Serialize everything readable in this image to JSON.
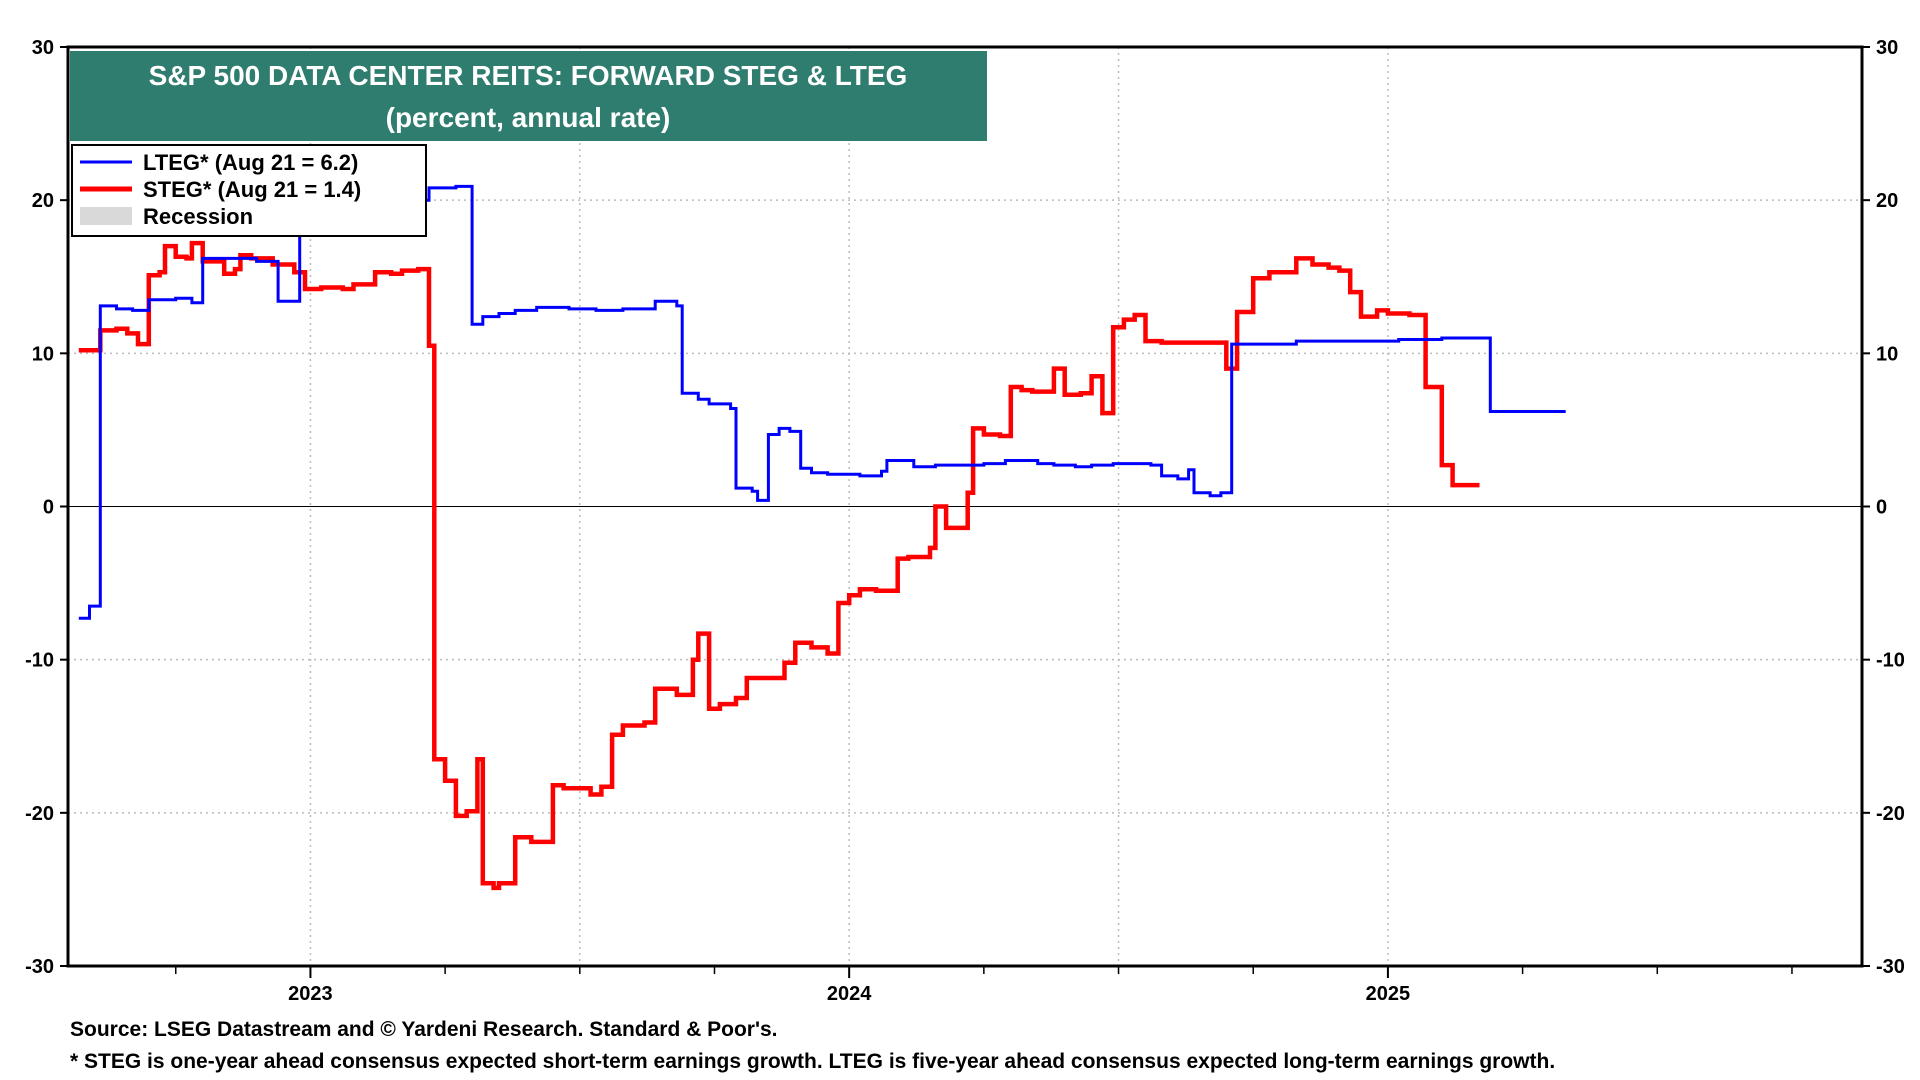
{
  "chart_data": {
    "type": "line",
    "title": "S&P 500 DATA CENTER REITS: FORWARD STEG & LTEG",
    "subtitle": "(percent, annual rate)",
    "ylim": [
      -30,
      30
    ],
    "yticks": [
      -30,
      -20,
      -10,
      0,
      10,
      20,
      30
    ],
    "xlim": [
      2022.55,
      2025.88
    ],
    "x_tick_labels": [
      {
        "label": "2023",
        "x": 2023.0
      },
      {
        "label": "2024",
        "x": 2024.0
      },
      {
        "label": "2025",
        "x": 2025.0
      }
    ],
    "x_minor_ticks": [
      2022.75,
      2023.25,
      2023.5,
      2023.75,
      2024.25,
      2024.5,
      2024.75,
      2025.25,
      2025.5,
      2025.75
    ],
    "x_grid": [
      2023.0,
      2023.5,
      2024.0,
      2024.5,
      2025.0
    ],
    "grid": true,
    "legend": {
      "placement": "top-left",
      "entries": [
        {
          "label": "LTEG* (Aug 21 = 6.2)",
          "color": "#0000ff"
        },
        {
          "label": "STEG* (Aug 21 = 1.4)",
          "color": "#ff0000"
        },
        {
          "label": "Recession",
          "color": "#d9d9d9"
        }
      ]
    },
    "series": [
      {
        "name": "LTEG* (Aug 21 = 6.2)",
        "color": "#0000ff",
        "step": true,
        "points": [
          [
            2022.57,
            -7.3
          ],
          [
            2022.59,
            -6.5
          ],
          [
            2022.61,
            13.1
          ],
          [
            2022.64,
            12.9
          ],
          [
            2022.67,
            12.8
          ],
          [
            2022.7,
            13.5
          ],
          [
            2022.75,
            13.6
          ],
          [
            2022.78,
            13.3
          ],
          [
            2022.8,
            16.2
          ],
          [
            2022.9,
            16.0
          ],
          [
            2022.94,
            13.4
          ],
          [
            2022.98,
            20.5
          ],
          [
            2023.05,
            20.5
          ],
          [
            2023.12,
            20.7
          ],
          [
            2023.15,
            20.0
          ],
          [
            2023.22,
            20.8
          ],
          [
            2023.27,
            20.9
          ],
          [
            2023.3,
            11.9
          ],
          [
            2023.32,
            12.4
          ],
          [
            2023.35,
            12.6
          ],
          [
            2023.38,
            12.8
          ],
          [
            2023.42,
            13.0
          ],
          [
            2023.48,
            12.9
          ],
          [
            2023.53,
            12.8
          ],
          [
            2023.58,
            12.9
          ],
          [
            2023.64,
            13.4
          ],
          [
            2023.68,
            13.1
          ],
          [
            2023.69,
            7.4
          ],
          [
            2023.72,
            7.0
          ],
          [
            2023.74,
            6.7
          ],
          [
            2023.78,
            6.4
          ],
          [
            2023.79,
            1.2
          ],
          [
            2023.82,
            1.0
          ],
          [
            2023.83,
            0.4
          ],
          [
            2023.85,
            4.7
          ],
          [
            2023.87,
            5.1
          ],
          [
            2023.89,
            4.9
          ],
          [
            2023.91,
            2.5
          ],
          [
            2023.93,
            2.2
          ],
          [
            2023.96,
            2.1
          ],
          [
            2024.02,
            2.0
          ],
          [
            2024.06,
            2.3
          ],
          [
            2024.07,
            3.0
          ],
          [
            2024.12,
            2.6
          ],
          [
            2024.16,
            2.7
          ],
          [
            2024.25,
            2.8
          ],
          [
            2024.29,
            3.0
          ],
          [
            2024.35,
            2.8
          ],
          [
            2024.38,
            2.7
          ],
          [
            2024.42,
            2.6
          ],
          [
            2024.45,
            2.7
          ],
          [
            2024.49,
            2.8
          ],
          [
            2024.56,
            2.7
          ],
          [
            2024.58,
            2.0
          ],
          [
            2024.61,
            1.8
          ],
          [
            2024.63,
            2.4
          ],
          [
            2024.64,
            0.9
          ],
          [
            2024.67,
            0.7
          ],
          [
            2024.69,
            0.9
          ],
          [
            2024.71,
            10.6
          ],
          [
            2024.76,
            10.6
          ],
          [
            2024.83,
            10.8
          ],
          [
            2025.02,
            10.9
          ],
          [
            2025.1,
            11.0
          ],
          [
            2025.18,
            11.0
          ],
          [
            2025.19,
            6.2
          ],
          [
            2025.33,
            6.2
          ]
        ]
      },
      {
        "name": "STEG* (Aug 21 = 1.4)",
        "color": "#ff0000",
        "step": true,
        "points": [
          [
            2022.57,
            10.2
          ],
          [
            2022.61,
            11.5
          ],
          [
            2022.64,
            11.6
          ],
          [
            2022.66,
            11.3
          ],
          [
            2022.68,
            10.6
          ],
          [
            2022.7,
            15.1
          ],
          [
            2022.72,
            15.3
          ],
          [
            2022.73,
            17.0
          ],
          [
            2022.75,
            16.3
          ],
          [
            2022.77,
            16.2
          ],
          [
            2022.78,
            17.2
          ],
          [
            2022.8,
            16.0
          ],
          [
            2022.84,
            15.2
          ],
          [
            2022.86,
            15.5
          ],
          [
            2022.87,
            16.4
          ],
          [
            2022.89,
            16.2
          ],
          [
            2022.93,
            15.8
          ],
          [
            2022.97,
            15.3
          ],
          [
            2022.99,
            14.2
          ],
          [
            2023.02,
            14.3
          ],
          [
            2023.06,
            14.2
          ],
          [
            2023.08,
            14.5
          ],
          [
            2023.12,
            15.3
          ],
          [
            2023.15,
            15.2
          ],
          [
            2023.17,
            15.4
          ],
          [
            2023.2,
            15.5
          ],
          [
            2023.22,
            10.5
          ],
          [
            2023.23,
            -16.5
          ],
          [
            2023.25,
            -17.9
          ],
          [
            2023.27,
            -20.2
          ],
          [
            2023.29,
            -19.9
          ],
          [
            2023.31,
            -16.5
          ],
          [
            2023.32,
            -24.6
          ],
          [
            2023.34,
            -24.9
          ],
          [
            2023.35,
            -24.6
          ],
          [
            2023.38,
            -21.6
          ],
          [
            2023.41,
            -21.9
          ],
          [
            2023.45,
            -18.2
          ],
          [
            2023.47,
            -18.4
          ],
          [
            2023.52,
            -18.8
          ],
          [
            2023.54,
            -18.3
          ],
          [
            2023.56,
            -14.9
          ],
          [
            2023.58,
            -14.3
          ],
          [
            2023.62,
            -14.1
          ],
          [
            2023.64,
            -11.9
          ],
          [
            2023.68,
            -12.3
          ],
          [
            2023.71,
            -10.0
          ],
          [
            2023.72,
            -8.3
          ],
          [
            2023.74,
            -13.2
          ],
          [
            2023.76,
            -12.9
          ],
          [
            2023.79,
            -12.5
          ],
          [
            2023.81,
            -11.2
          ],
          [
            2023.88,
            -10.2
          ],
          [
            2023.9,
            -8.9
          ],
          [
            2023.93,
            -9.2
          ],
          [
            2023.96,
            -9.6
          ],
          [
            2023.98,
            -6.3
          ],
          [
            2024.0,
            -5.8
          ],
          [
            2024.02,
            -5.4
          ],
          [
            2024.05,
            -5.5
          ],
          [
            2024.09,
            -3.4
          ],
          [
            2024.11,
            -3.3
          ],
          [
            2024.15,
            -2.7
          ],
          [
            2024.16,
            0.0
          ],
          [
            2024.18,
            -1.4
          ],
          [
            2024.22,
            0.9
          ],
          [
            2024.23,
            5.1
          ],
          [
            2024.25,
            4.7
          ],
          [
            2024.28,
            4.6
          ],
          [
            2024.3,
            7.8
          ],
          [
            2024.32,
            7.6
          ],
          [
            2024.34,
            7.5
          ],
          [
            2024.38,
            9.0
          ],
          [
            2024.4,
            7.3
          ],
          [
            2024.43,
            7.4
          ],
          [
            2024.45,
            8.5
          ],
          [
            2024.47,
            6.1
          ],
          [
            2024.49,
            11.7
          ],
          [
            2024.51,
            12.2
          ],
          [
            2024.53,
            12.5
          ],
          [
            2024.55,
            10.8
          ],
          [
            2024.58,
            10.7
          ],
          [
            2024.7,
            9.0
          ],
          [
            2024.72,
            12.7
          ],
          [
            2024.75,
            14.9
          ],
          [
            2024.78,
            15.3
          ],
          [
            2024.83,
            16.2
          ],
          [
            2024.86,
            15.8
          ],
          [
            2024.89,
            15.6
          ],
          [
            2024.91,
            15.4
          ],
          [
            2024.93,
            14.0
          ],
          [
            2024.95,
            12.4
          ],
          [
            2024.98,
            12.8
          ],
          [
            2025.0,
            12.6
          ],
          [
            2025.04,
            12.5
          ],
          [
            2025.07,
            7.8
          ],
          [
            2025.1,
            2.7
          ],
          [
            2025.12,
            1.4
          ],
          [
            2025.17,
            1.4
          ]
        ]
      }
    ]
  },
  "footer": {
    "source": "Source: LSEG Datastream and © Yardeni Research. Standard & Poor's.",
    "note": "* STEG is one-year ahead consensus expected short-term earnings growth. LTEG is five-year ahead consensus expected long-term earnings growth."
  },
  "colors": {
    "title_bg": "#2e7d6e",
    "lteg": "#0000ff",
    "steg": "#ff0000",
    "recession": "#d9d9d9",
    "grid": "#bbbbbb"
  }
}
